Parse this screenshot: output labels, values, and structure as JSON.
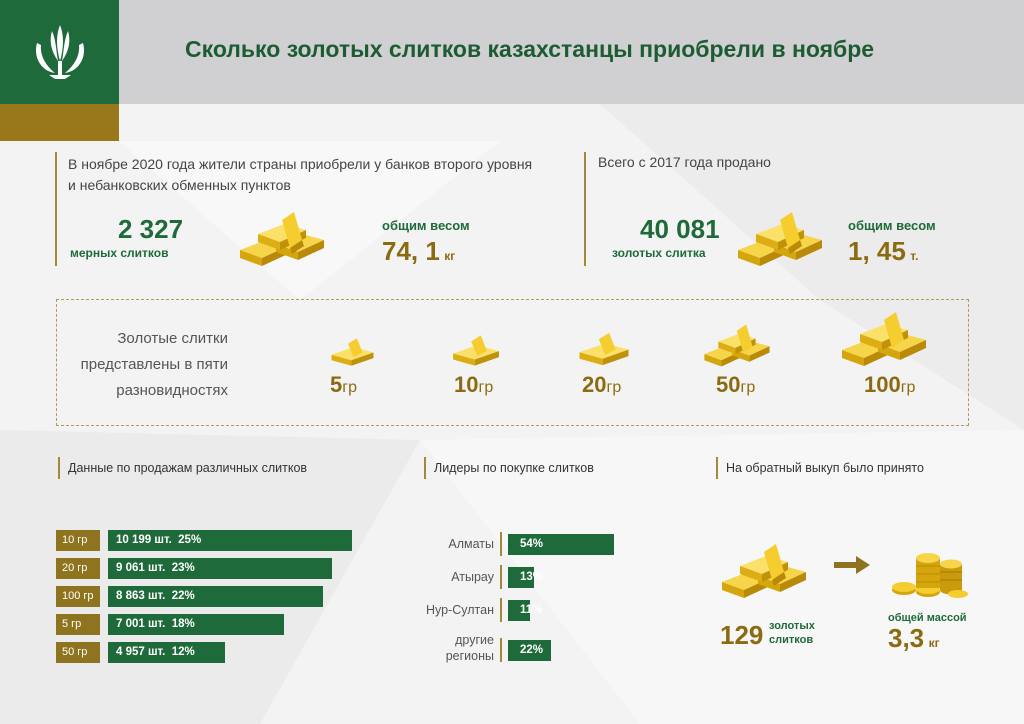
{
  "header": {
    "title": "Сколько золотых слитков казахстанцы приобрели в ноябре"
  },
  "logo": {
    "icon": "wheat-sheaf-emblem-icon"
  },
  "november": {
    "description": "В ноябре 2020 года жители страны приобрели у банков второго уровня и небанковских обменных пунктов",
    "count": "2 327",
    "count_label": "мерных слитков",
    "weight_label": "общим весом",
    "weight_value": "74, 1",
    "weight_unit": "кг"
  },
  "total": {
    "description": "Всего с 2017 года продано",
    "count": "40 081",
    "count_label": "золотых слитка",
    "weight_label": "общим весом",
    "weight_value": "1, 45",
    "weight_unit": "т."
  },
  "types": {
    "label": "Золотые слитки представлены в пяти разновидностях",
    "items": [
      {
        "value": "5",
        "unit": "гр"
      },
      {
        "value": "10",
        "unit": "гр"
      },
      {
        "value": "20",
        "unit": "гр"
      },
      {
        "value": "50",
        "unit": "гр"
      },
      {
        "value": "100",
        "unit": "гр"
      }
    ]
  },
  "sales": {
    "title": "Данные по продажам различных слитков",
    "rows": [
      {
        "unit": "10 гр",
        "label": "10 199 шт.  25%",
        "share": 25
      },
      {
        "unit": "20 гр",
        "label": "9 061 шт.  23%",
        "share": 23
      },
      {
        "unit": "100 гр",
        "label": "8 863 шт.  22%",
        "share": 22
      },
      {
        "unit": "5 гр",
        "label": "7 001 шт.  18%",
        "share": 18
      },
      {
        "unit": "50 гр",
        "label": "4 957 шт.  12%",
        "share": 12
      }
    ]
  },
  "leaders": {
    "title": "Лидеры по покупке слитков",
    "rows": [
      {
        "region": "Алматы",
        "label": "54%",
        "share": 54
      },
      {
        "region": "Атырау",
        "label": "13%",
        "share": 13
      },
      {
        "region": "Нур-Султан",
        "label": "11%",
        "share": 11
      },
      {
        "region": "другие регионы",
        "label": "22%",
        "share": 22
      }
    ]
  },
  "buyback": {
    "title": "На обратный выкуп было принято",
    "count": "129",
    "count_label": "золотых слитков",
    "mass_label": "общей массой",
    "mass_value": "3,3",
    "mass_unit": "кг"
  },
  "colors": {
    "green": "#1f6a3a",
    "gold": "#8f7420",
    "gold_bar": "#f2c31a"
  }
}
